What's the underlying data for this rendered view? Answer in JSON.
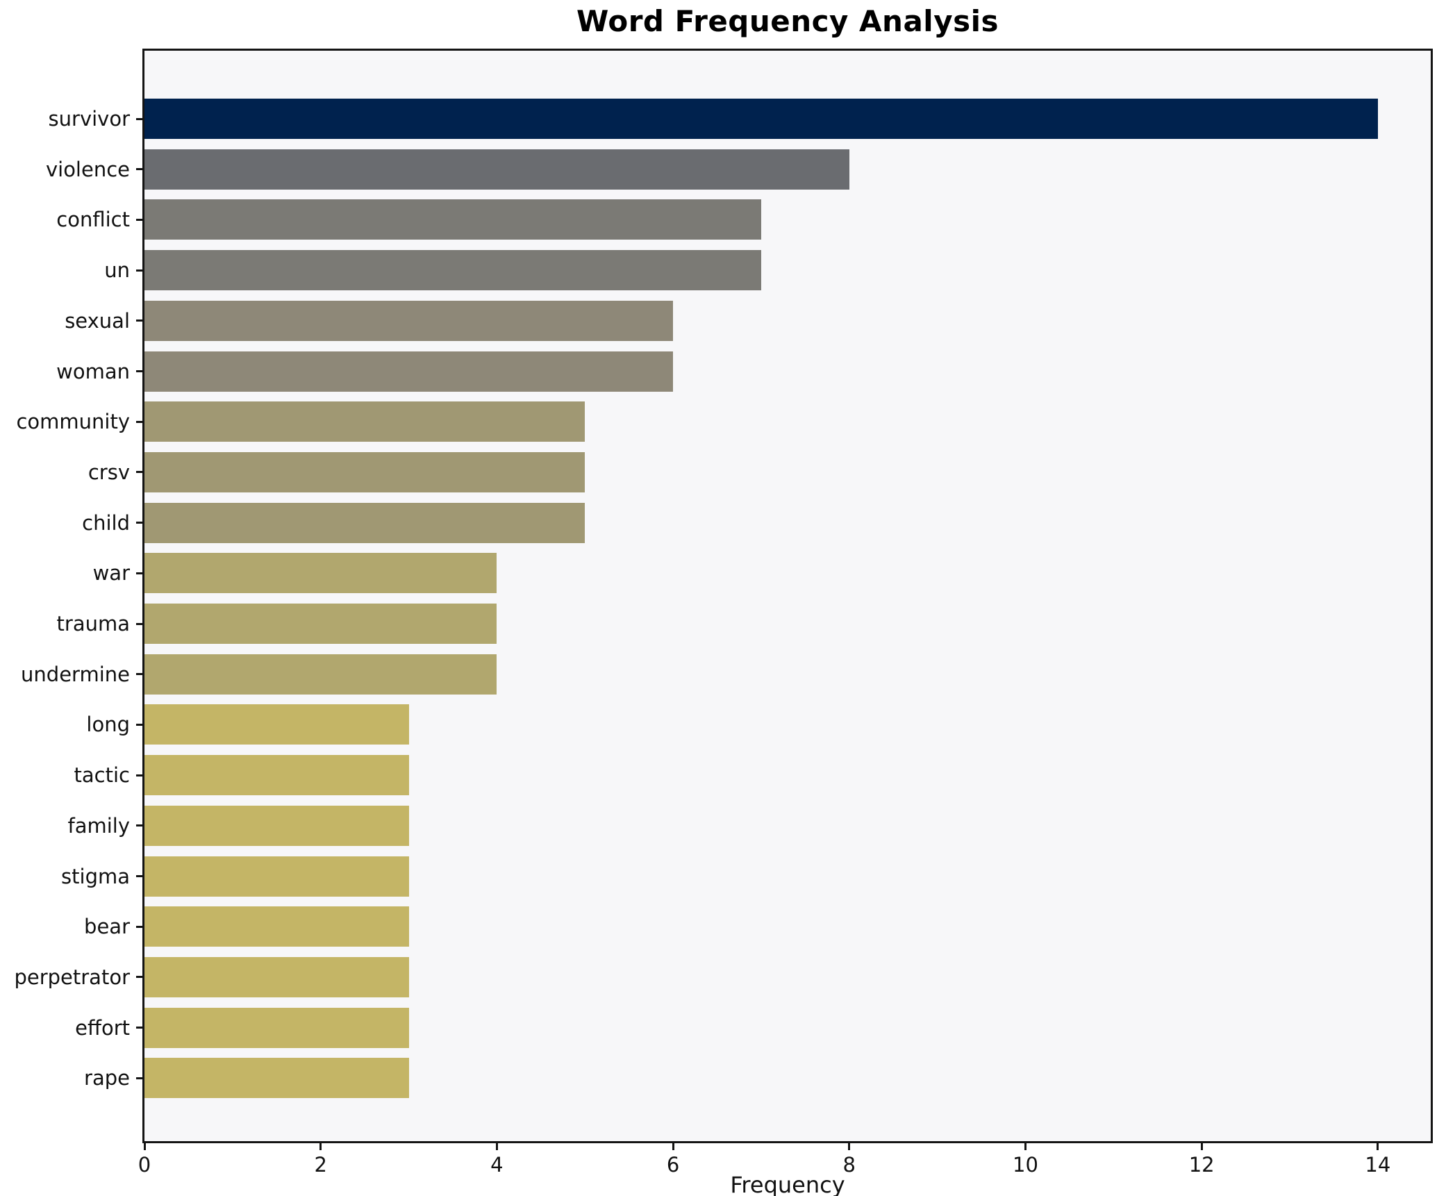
{
  "chart_data": {
    "type": "bar",
    "orientation": "horizontal",
    "title": "Word Frequency Analysis",
    "xlabel": "Frequency",
    "ylabel": "",
    "categories": [
      "survivor",
      "violence",
      "conflict",
      "un",
      "sexual",
      "woman",
      "community",
      "crsv",
      "child",
      "war",
      "trauma",
      "undermine",
      "long",
      "tactic",
      "family",
      "stigma",
      "bear",
      "perpetrator",
      "effort",
      "rape"
    ],
    "values": [
      14,
      8,
      7,
      7,
      6,
      6,
      5,
      5,
      5,
      4,
      4,
      4,
      3,
      3,
      3,
      3,
      3,
      3,
      3,
      3
    ],
    "bar_colors": [
      "#00224e",
      "#6a6c70",
      "#7b7a75",
      "#7b7a75",
      "#8e8878",
      "#8e8878",
      "#a09873",
      "#a09873",
      "#a09873",
      "#b1a76e",
      "#b1a76e",
      "#b1a76e",
      "#c4b566",
      "#c4b566",
      "#c4b566",
      "#c4b566",
      "#c4b566",
      "#c4b566",
      "#c4b566",
      "#c4b566"
    ],
    "xticks": [
      0,
      2,
      4,
      6,
      8,
      10,
      12,
      14
    ],
    "xlim": [
      0,
      14.6
    ],
    "grid": false,
    "legend_position": "none",
    "plot_background": "#f7f7f9",
    "figure_background": "#ffffff",
    "spine_color": "#141414",
    "text_color": "#111111"
  }
}
